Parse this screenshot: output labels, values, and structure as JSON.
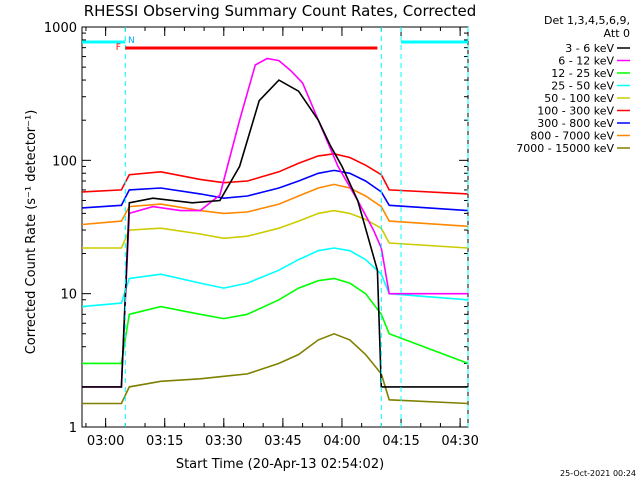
{
  "chart_data": {
    "type": "line",
    "title": "RHESSI Observing Summary Count Rates, Corrected",
    "xlabel": "Start Time (20-Apr-13 02:54:02)",
    "ylabel": "Corrected Count Rate (s⁻¹ detector⁻¹)",
    "y_scale": "log",
    "ylim": [
      1,
      1000
    ],
    "xlim_minutes": [
      0,
      98
    ],
    "x_ticks": [
      {
        "label": "03:00",
        "minute": 6
      },
      {
        "label": "03:15",
        "minute": 21
      },
      {
        "label": "03:30",
        "minute": 36
      },
      {
        "label": "03:45",
        "minute": 51
      },
      {
        "label": "04:00",
        "minute": 66
      },
      {
        "label": "04:15",
        "minute": 81
      },
      {
        "label": "04:30",
        "minute": 96
      }
    ],
    "y_ticks": [
      {
        "label": "1",
        "value": 1
      },
      {
        "label": "10",
        "value": 10
      },
      {
        "label": "100",
        "value": 100
      },
      {
        "label": "1000",
        "value": 1000
      }
    ],
    "legend_header": [
      "Det 1,3,4,5,6,9,",
      "Att 0"
    ],
    "legend_position": "top-right",
    "series": [
      {
        "name": "3 - 6 keV",
        "color": "#000000",
        "x": [
          0,
          10,
          12,
          18,
          28,
          35,
          40,
          45,
          50,
          55,
          60,
          63,
          66,
          70,
          75,
          76,
          81,
          83,
          98
        ],
        "y": [
          2,
          2,
          48,
          52,
          48,
          50,
          90,
          280,
          400,
          330,
          200,
          130,
          90,
          50,
          15,
          2,
          2,
          2,
          2
        ]
      },
      {
        "name": "6 - 12 keV",
        "color": "#ff00ff",
        "x": [
          0,
          10,
          12,
          18,
          25,
          30,
          35,
          40,
          44,
          47,
          50,
          53,
          56,
          60,
          65,
          70,
          74,
          76,
          78,
          81,
          98
        ],
        "y": [
          2,
          2,
          40,
          45,
          42,
          42,
          55,
          200,
          520,
          580,
          560,
          470,
          380,
          200,
          90,
          50,
          30,
          22,
          10,
          10,
          10
        ]
      },
      {
        "name": "12 - 25 keV",
        "color": "#00ff00",
        "x": [
          0,
          10,
          12,
          20,
          30,
          36,
          42,
          50,
          55,
          60,
          64,
          68,
          72,
          76,
          78,
          98
        ],
        "y": [
          3,
          3,
          7,
          8,
          7,
          6.5,
          7,
          9,
          11,
          12.5,
          13,
          12,
          10,
          7,
          5,
          3
        ]
      },
      {
        "name": "25 - 50 keV",
        "color": "#00ffff",
        "x": [
          0,
          10,
          12,
          20,
          30,
          36,
          42,
          50,
          55,
          60,
          64,
          68,
          72,
          76,
          78,
          98
        ],
        "y": [
          8,
          8.5,
          13,
          14,
          12,
          11,
          12,
          15,
          18,
          21,
          22,
          21,
          18,
          14,
          10,
          9
        ]
      },
      {
        "name": "50 - 100 keV",
        "color": "#cccc00",
        "x": [
          0,
          10,
          12,
          20,
          30,
          36,
          42,
          50,
          55,
          60,
          64,
          68,
          72,
          76,
          78,
          98
        ],
        "y": [
          22,
          22,
          30,
          31,
          28,
          26,
          27,
          31,
          35,
          40,
          42,
          40,
          36,
          31,
          24,
          22
        ]
      },
      {
        "name": "100 - 300 keV",
        "color": "#ff0000",
        "x": [
          0,
          10,
          12,
          20,
          30,
          36,
          42,
          50,
          55,
          60,
          64,
          68,
          72,
          76,
          78,
          98
        ],
        "y": [
          58,
          60,
          78,
          82,
          72,
          68,
          70,
          82,
          95,
          108,
          112,
          105,
          92,
          78,
          60,
          56
        ]
      },
      {
        "name": "300 - 800 keV",
        "color": "#0000ff",
        "x": [
          0,
          10,
          12,
          20,
          30,
          36,
          42,
          50,
          55,
          60,
          64,
          68,
          72,
          76,
          78,
          98
        ],
        "y": [
          44,
          46,
          60,
          62,
          56,
          52,
          54,
          62,
          70,
          80,
          84,
          80,
          70,
          58,
          46,
          42
        ]
      },
      {
        "name": "800 - 7000 keV",
        "color": "#ff8800",
        "x": [
          0,
          10,
          12,
          20,
          30,
          36,
          42,
          50,
          55,
          60,
          64,
          68,
          72,
          76,
          78,
          98
        ],
        "y": [
          33,
          35,
          45,
          47,
          42,
          40,
          41,
          47,
          54,
          62,
          66,
          62,
          54,
          45,
          35,
          32
        ]
      },
      {
        "name": "7000 - 15000 keV",
        "color": "#808000",
        "x": [
          0,
          10,
          12,
          20,
          30,
          36,
          42,
          50,
          55,
          60,
          64,
          68,
          72,
          76,
          78,
          98
        ],
        "y": [
          1.5,
          1.5,
          2,
          2.2,
          2.3,
          2.4,
          2.5,
          3,
          3.5,
          4.5,
          5,
          4.5,
          3.5,
          2.5,
          1.6,
          1.5
        ]
      }
    ],
    "annotations": [
      {
        "label": "F",
        "color": "#ff0000"
      },
      {
        "label": "N",
        "color": "#00aaff"
      }
    ],
    "flag_bars": [
      {
        "name": "night",
        "color": "#00ffff",
        "segments": [
          [
            0,
            11
          ],
          [
            81,
            98
          ]
        ]
      },
      {
        "name": "flare",
        "color": "#ff0000",
        "segments": [
          [
            11,
            75
          ]
        ]
      }
    ],
    "vertical_markers": [
      11,
      76,
      81,
      98
    ],
    "timestamp": "25-Oct-2021 00:24"
  }
}
